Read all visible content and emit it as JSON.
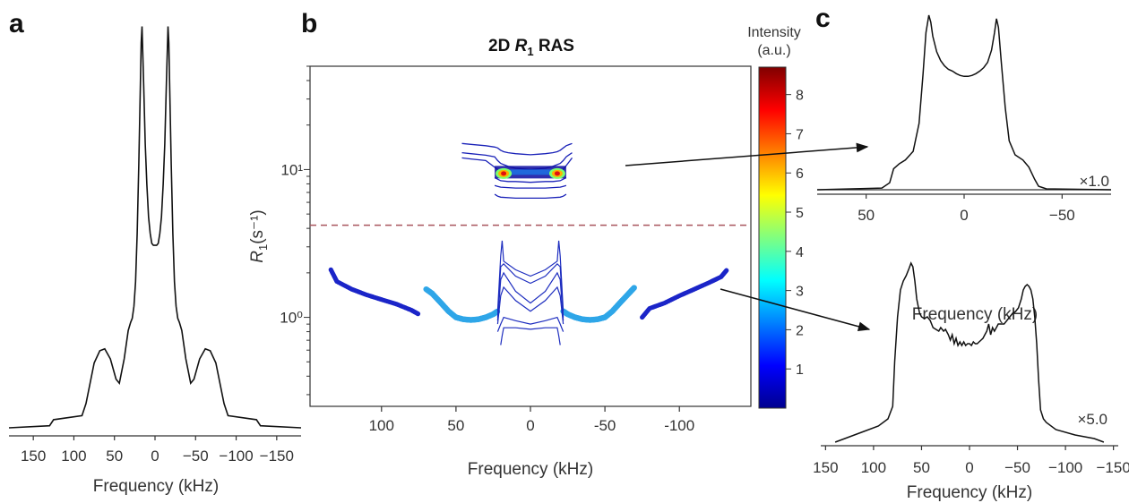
{
  "panels": {
    "a": "a",
    "b": "b",
    "c": "c"
  },
  "chart_data": [
    {
      "id": "a",
      "type": "line",
      "xlabel": "Frequency (kHz)",
      "xlim": [
        180,
        -180
      ],
      "x_ticks": [
        {
          "v": 150,
          "label": "150"
        },
        {
          "v": 100,
          "label": "100"
        },
        {
          "v": 50,
          "label": "50"
        },
        {
          "v": 0,
          "label": "0"
        },
        {
          "v": -50,
          "label": "−50"
        },
        {
          "v": -100,
          "label": "−100"
        },
        {
          "v": -150,
          "label": "−150"
        }
      ],
      "ylim": [
        0,
        1.0
      ],
      "x": [
        180,
        130,
        125,
        90,
        85,
        75,
        68,
        62,
        55,
        48,
        44,
        38,
        33,
        30,
        28,
        26,
        24,
        22,
        20,
        18,
        17,
        16,
        14,
        12,
        10,
        8,
        6,
        4,
        2,
        0,
        -2,
        -4,
        -6,
        -8,
        -10,
        -12,
        -14,
        -16,
        -17,
        -18,
        -20,
        -22,
        -24,
        -26,
        -28,
        -30,
        -33,
        -38,
        -44,
        -48,
        -55,
        -62,
        -68,
        -75,
        -85,
        -90,
        -125,
        -130,
        -180
      ],
      "y": [
        0.0,
        0.005,
        0.02,
        0.03,
        0.06,
        0.16,
        0.19,
        0.195,
        0.17,
        0.12,
        0.11,
        0.17,
        0.24,
        0.26,
        0.27,
        0.3,
        0.36,
        0.48,
        0.65,
        0.85,
        0.95,
        0.99,
        0.85,
        0.7,
        0.6,
        0.52,
        0.48,
        0.455,
        0.45,
        0.45,
        0.45,
        0.455,
        0.48,
        0.52,
        0.6,
        0.7,
        0.85,
        0.99,
        0.95,
        0.85,
        0.65,
        0.48,
        0.36,
        0.3,
        0.27,
        0.26,
        0.24,
        0.17,
        0.11,
        0.12,
        0.17,
        0.195,
        0.19,
        0.16,
        0.06,
        0.03,
        0.02,
        0.005,
        0.0
      ]
    },
    {
      "id": "b",
      "type": "scatter",
      "title_main": "2D ",
      "title_var": "R",
      "title_sub": "1",
      "title_rest": " RAS",
      "xlabel": "Frequency (kHz)",
      "ylabel_var": "R",
      "ylabel_sub": "1",
      "ylabel_unit": "(s⁻¹)",
      "xlim": [
        148,
        -148
      ],
      "ylim": [
        0.25,
        50
      ],
      "yscale": "log",
      "x_ticks": [
        {
          "v": 100,
          "label": "100"
        },
        {
          "v": 50,
          "label": "50"
        },
        {
          "v": 0,
          "label": "0"
        },
        {
          "v": -50,
          "label": "-50"
        },
        {
          "v": -100,
          "label": "-100"
        }
      ],
      "y_ticks": [
        {
          "v": 1,
          "label": "10⁰"
        },
        {
          "v": 10,
          "label": "10¹"
        }
      ],
      "threshold_R1": 4.2,
      "lower_component": {
        "left_arm": {
          "x": [
            134,
            130,
            120,
            110,
            100,
            90,
            80,
            75
          ],
          "R1": [
            2.1,
            1.75,
            1.55,
            1.42,
            1.32,
            1.23,
            1.12,
            1.05
          ]
        },
        "left_hump": {
          "x": [
            70,
            66,
            60,
            55,
            50,
            45,
            40,
            35,
            30,
            25,
            22
          ],
          "R1": [
            1.55,
            1.45,
            1.25,
            1.1,
            1.0,
            0.97,
            0.96,
            0.97,
            1.0,
            1.05,
            1.1
          ]
        },
        "center_lines": [
          {
            "x": [
              22,
              20,
              19,
              18,
              10,
              0,
              -10,
              -18,
              -19,
              -20,
              -22
            ],
            "R1": [
              1.1,
              2.6,
              3.3,
              2.4,
              2.1,
              1.9,
              2.1,
              2.4,
              3.3,
              2.6,
              1.1
            ]
          },
          {
            "x": [
              22,
              20,
              18,
              10,
              0,
              -10,
              -18,
              -20,
              -22
            ],
            "R1": [
              1.0,
              2.2,
              2.3,
              1.9,
              1.7,
              1.9,
              2.3,
              2.2,
              1.0
            ]
          },
          {
            "x": [
              22,
              20,
              18,
              10,
              0,
              -10,
              -18,
              -20,
              -22
            ],
            "R1": [
              0.95,
              1.8,
              2.0,
              1.5,
              1.25,
              1.5,
              2.0,
              1.8,
              0.95
            ]
          },
          {
            "x": [
              22,
              20,
              18,
              10,
              0,
              -10,
              -18,
              -20,
              -22
            ],
            "R1": [
              0.9,
              1.4,
              1.6,
              1.3,
              1.1,
              1.3,
              1.6,
              1.4,
              0.9
            ]
          },
          {
            "x": [
              22,
              20,
              18,
              10,
              0,
              -10,
              -18,
              -20,
              -22
            ],
            "R1": [
              0.8,
              0.9,
              1.0,
              0.95,
              0.9,
              0.95,
              1.0,
              0.9,
              0.8
            ]
          },
          {
            "x": [
              20,
              19,
              18,
              10,
              0,
              -10,
              -18,
              -19,
              -20
            ],
            "R1": [
              0.65,
              0.75,
              0.85,
              0.85,
              0.83,
              0.85,
              0.85,
              0.75,
              0.65
            ]
          }
        ],
        "right_hump": {
          "x": [
            -22,
            -25,
            -30,
            -35,
            -40,
            -45,
            -50,
            -55,
            -60,
            -66,
            -70
          ],
          "R1": [
            1.1,
            1.05,
            1.0,
            0.97,
            0.96,
            0.97,
            1.0,
            1.1,
            1.25,
            1.45,
            1.6
          ]
        },
        "right_arm": {
          "x": [
            -75,
            -80,
            -90,
            -100,
            -110,
            -120,
            -128,
            -132
          ],
          "R1": [
            1.0,
            1.15,
            1.25,
            1.4,
            1.55,
            1.72,
            1.88,
            2.1
          ]
        }
      },
      "upper_component": {
        "lines": [
          {
            "x": [
              46,
              40,
              30,
              24,
              22,
              20,
              18,
              15,
              10,
              5,
              0,
              -5,
              -10,
              -15,
              -18,
              -20,
              -22,
              -24,
              -28
            ],
            "R1": [
              15,
              14.8,
              14.5,
              14.2,
              14,
              13.5,
              13.2,
              13,
              12.8,
              12.7,
              12.6,
              12.7,
              12.8,
              13,
              13.2,
              13.5,
              14,
              14.5,
              15
            ]
          },
          {
            "x": [
              46,
              40,
              30,
              24,
              22,
              20,
              15,
              10,
              0,
              -10,
              -15,
              -20,
              -22,
              -24,
              -28
            ],
            "R1": [
              13,
              12.8,
              12.5,
              12.2,
              11.5,
              11,
              10.5,
              10.2,
              10,
              10.2,
              10.5,
              11,
              11.5,
              12.2,
              13
            ]
          },
          {
            "x": [
              46,
              40,
              30,
              22,
              20,
              15,
              10,
              0,
              -10,
              -15,
              -20,
              -22,
              -28
            ],
            "R1": [
              12,
              11.8,
              11.5,
              10,
              9.7,
              9.5,
              9.4,
              9.3,
              9.4,
              9.5,
              9.7,
              10,
              12
            ]
          },
          {
            "x": [
              24,
              22,
              20,
              15,
              10,
              0,
              -10,
              -15,
              -20,
              -22,
              -24
            ],
            "R1": [
              8.8,
              8.6,
              8.4,
              8.3,
              8.3,
              8.2,
              8.3,
              8.3,
              8.4,
              8.6,
              8.8
            ]
          },
          {
            "x": [
              24,
              22,
              20,
              10,
              0,
              -10,
              -20,
              -22,
              -24
            ],
            "R1": [
              7.8,
              7.7,
              7.6,
              7.5,
              7.5,
              7.5,
              7.6,
              7.7,
              7.8
            ]
          },
          {
            "x": [
              24,
              22,
              20,
              10,
              0,
              -10,
              -20,
              -22,
              -24
            ],
            "R1": [
              6.8,
              6.6,
              6.5,
              6.4,
              6.4,
              6.4,
              6.5,
              6.6,
              6.8
            ]
          }
        ],
        "hotspots": [
          {
            "x": 18,
            "R1": 9.4
          },
          {
            "x": -18,
            "R1": 9.4
          }
        ],
        "band_x": [
          24,
          -24
        ],
        "band_R1": 9.6
      },
      "colorbar": {
        "label_line1": "Intensity",
        "label_line2": "(a.u.)",
        "range": [
          0,
          8.7
        ],
        "ticks": [
          {
            "v": 1,
            "label": "1"
          },
          {
            "v": 2,
            "label": "2"
          },
          {
            "v": 3,
            "label": "3"
          },
          {
            "v": 4,
            "label": "4"
          },
          {
            "v": 5,
            "label": "5"
          },
          {
            "v": 6,
            "label": "6"
          },
          {
            "v": 7,
            "label": "7"
          },
          {
            "v": 8,
            "label": "8"
          }
        ],
        "colors": [
          "#00008f",
          "#0000ff",
          "#0080ff",
          "#00ffff",
          "#80ff80",
          "#ffff00",
          "#ff8000",
          "#ff0000",
          "#800000"
        ]
      }
    },
    {
      "id": "c_top",
      "type": "line",
      "xlabel": "Frequency (kHz)",
      "xlim": [
        75,
        -75
      ],
      "x_ticks": [
        {
          "v": 50,
          "label": "50"
        },
        {
          "v": 0,
          "label": "0"
        },
        {
          "v": -50,
          "label": "−50"
        }
      ],
      "annotation": "×1.0",
      "x": [
        75,
        42,
        38,
        36,
        33,
        30,
        26,
        23,
        21,
        19.5,
        18,
        17,
        16,
        14,
        12,
        10,
        8,
        6,
        4,
        2,
        0,
        -2,
        -4,
        -6,
        -8,
        -10,
        -12,
        -14,
        -15.5,
        -16.5,
        -17.5,
        -19,
        -21,
        -23,
        -26,
        -30,
        -33,
        -36,
        -38,
        -42,
        -75
      ],
      "y": [
        0.0,
        0.01,
        0.04,
        0.12,
        0.15,
        0.17,
        0.22,
        0.38,
        0.66,
        0.9,
        1.0,
        0.96,
        0.88,
        0.79,
        0.74,
        0.71,
        0.69,
        0.68,
        0.665,
        0.655,
        0.65,
        0.65,
        0.655,
        0.665,
        0.68,
        0.7,
        0.73,
        0.8,
        0.9,
        0.98,
        0.93,
        0.73,
        0.47,
        0.28,
        0.2,
        0.17,
        0.13,
        0.06,
        0.02,
        0.005,
        0.0
      ]
    },
    {
      "id": "c_bottom",
      "type": "line",
      "xlabel": "Frequency (kHz)",
      "xlim": [
        155,
        -155
      ],
      "x_ticks": [
        {
          "v": 150,
          "label": "150"
        },
        {
          "v": 100,
          "label": "100"
        },
        {
          "v": 50,
          "label": "50"
        },
        {
          "v": 0,
          "label": "0"
        },
        {
          "v": -50,
          "label": "−50"
        },
        {
          "v": -100,
          "label": "−100"
        },
        {
          "v": -150,
          "label": "−150"
        }
      ],
      "annotation": "×5.0",
      "x": [
        140,
        130,
        110,
        95,
        85,
        80,
        78,
        75,
        72,
        69,
        66,
        63,
        61,
        59,
        57,
        55,
        52,
        50,
        47,
        44,
        41,
        38,
        35,
        32,
        30,
        27,
        25,
        22,
        20,
        18,
        16,
        14,
        12,
        10,
        8,
        6,
        4,
        2,
        0,
        -2,
        -4,
        -6,
        -8,
        -10,
        -12,
        -14,
        -16,
        -18,
        -20,
        -21,
        -22,
        -24,
        -26,
        -28,
        -30,
        -33,
        -36,
        -39,
        -42,
        -45,
        -48,
        -51,
        -54,
        -56,
        -58,
        -60,
        -62,
        -64,
        -66,
        -68,
        -70,
        -72,
        -74,
        -77,
        -80,
        -90,
        -110,
        -130,
        -140
      ],
      "y": [
        0.0,
        0.02,
        0.06,
        0.09,
        0.13,
        0.2,
        0.45,
        0.7,
        0.85,
        0.9,
        0.93,
        0.97,
        1.0,
        0.98,
        0.9,
        0.8,
        0.72,
        0.7,
        0.69,
        0.7,
        0.68,
        0.64,
        0.63,
        0.62,
        0.64,
        0.62,
        0.63,
        0.6,
        0.57,
        0.6,
        0.55,
        0.58,
        0.54,
        0.56,
        0.54,
        0.56,
        0.54,
        0.55,
        0.55,
        0.54,
        0.56,
        0.55,
        0.55,
        0.56,
        0.57,
        0.58,
        0.6,
        0.62,
        0.66,
        0.63,
        0.6,
        0.64,
        0.62,
        0.64,
        0.66,
        0.66,
        0.66,
        0.68,
        0.7,
        0.72,
        0.73,
        0.75,
        0.8,
        0.85,
        0.87,
        0.88,
        0.87,
        0.85,
        0.8,
        0.7,
        0.55,
        0.35,
        0.18,
        0.13,
        0.11,
        0.07,
        0.04,
        0.02,
        0.0
      ]
    }
  ]
}
